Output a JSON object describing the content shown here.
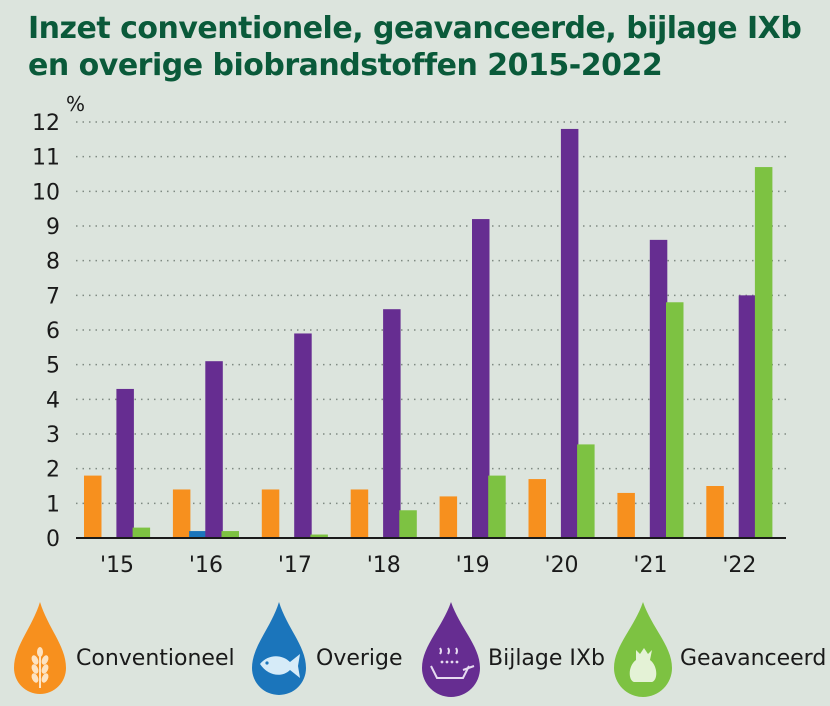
{
  "chart_data": {
    "type": "bar",
    "title_lines": [
      "Inzet conventionele, geavanceerde, bijlage IXb",
      "en overige biobrandstoffen 2015-2022"
    ],
    "unit": "%",
    "categories": [
      "'15",
      "'16",
      "'17",
      "'18",
      "'19",
      "'20",
      "'21",
      "'22"
    ],
    "ylim": [
      0,
      12
    ],
    "yticks": [
      0,
      1,
      2,
      3,
      4,
      5,
      6,
      7,
      8,
      9,
      10,
      11,
      12
    ],
    "grid": true,
    "series": [
      {
        "name": "Conventioneel",
        "color": "#f7901e",
        "values": [
          1.8,
          1.4,
          1.4,
          1.4,
          1.2,
          1.7,
          1.3,
          1.5
        ]
      },
      {
        "name": "Overige",
        "color": "#1b75bb",
        "values": [
          0,
          0.2,
          0,
          0,
          0,
          0,
          0,
          0
        ]
      },
      {
        "name": "Bijlage IXb",
        "color": "#662d91",
        "values": [
          4.3,
          5.1,
          5.9,
          6.6,
          9.2,
          11.8,
          8.6,
          7.0
        ]
      },
      {
        "name": "Geavanceerd",
        "color": "#7dc242",
        "values": [
          0.3,
          0.2,
          0.1,
          0.8,
          1.8,
          2.7,
          6.8,
          10.7
        ]
      }
    ]
  },
  "legend": [
    {
      "label": "Conventioneel",
      "color": "#f7901e",
      "icon": "wheat-icon"
    },
    {
      "label": "Overige",
      "color": "#1b75bb",
      "icon": "fish-icon"
    },
    {
      "label": "Bijlage IXb",
      "color": "#662d91",
      "icon": "frying-pan-icon"
    },
    {
      "label": "Geavanceerd",
      "color": "#7dc242",
      "icon": "waste-bag-icon"
    }
  ]
}
